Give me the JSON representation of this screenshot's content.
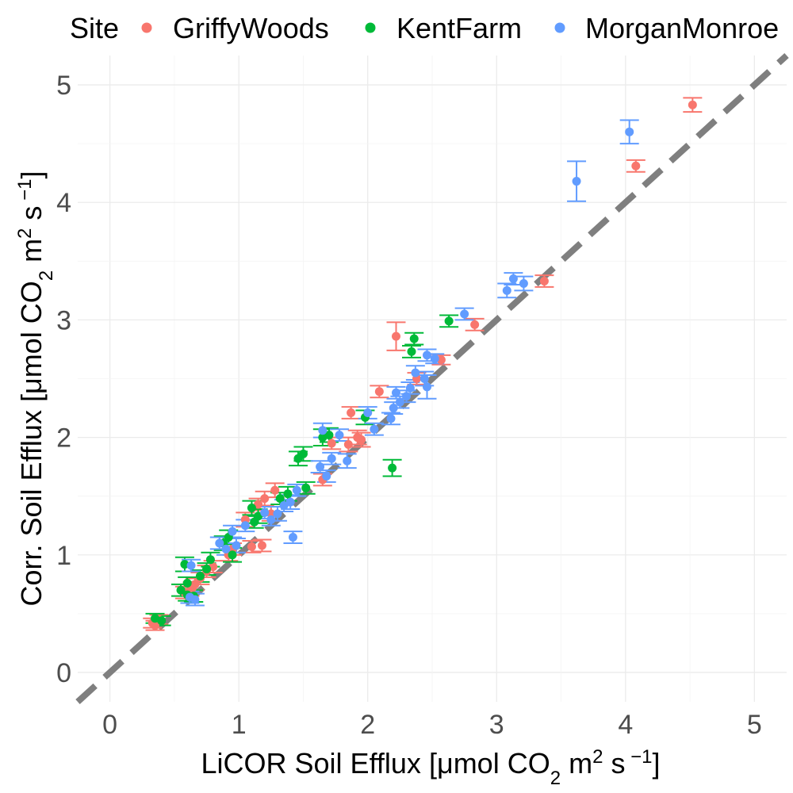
{
  "chart_data": {
    "type": "scatter",
    "legend": {
      "title": "Site",
      "position": "top"
    },
    "xlabel": {
      "main": "LiCOR Soil Efflux  [",
      "unit": "μmol CO",
      "sub": "2",
      "mid": " m",
      "sup1": "2",
      "sp": " s",
      "sup2": " −1",
      "close": "]"
    },
    "ylabel": {
      "main": "Corr. Soil Efflux  [",
      "unit": "μmol CO",
      "sub": "2",
      "mid": " m",
      "sup1": "2",
      "sp": " s",
      "sup2": " −1",
      "close": "]"
    },
    "xlim": [
      -0.25,
      5.25
    ],
    "ylim": [
      -0.25,
      5.25
    ],
    "xticks": [
      "0",
      "1",
      "2",
      "3",
      "4",
      "5"
    ],
    "yticks": [
      "0",
      "1",
      "2",
      "3",
      "4",
      "5"
    ],
    "grid": true,
    "reference_line": {
      "slope": 1,
      "intercept": 0,
      "style": "dashed",
      "color": "#7f7f7f"
    },
    "series": [
      {
        "name": "GriffyWoods",
        "color": "#F8766D",
        "points": [
          [
            4.52,
            4.83,
            0.06
          ],
          [
            4.08,
            4.31,
            0.05
          ],
          [
            3.37,
            3.33,
            0.05
          ],
          [
            2.83,
            2.96,
            0.05
          ],
          [
            2.22,
            2.86,
            0.12
          ],
          [
            2.57,
            2.66,
            0.04
          ],
          [
            2.38,
            2.5,
            0.05
          ],
          [
            2.09,
            2.39,
            0.05
          ],
          [
            1.87,
            2.21,
            0.05
          ],
          [
            1.92,
            2.0,
            0.06
          ],
          [
            1.85,
            1.94,
            0.06
          ],
          [
            1.95,
            1.98,
            0.06
          ],
          [
            1.72,
            1.95,
            0.05
          ],
          [
            1.65,
            1.64,
            0.05
          ],
          [
            1.28,
            1.55,
            0.06
          ],
          [
            1.2,
            1.48,
            0.06
          ],
          [
            1.15,
            1.43,
            0.05
          ],
          [
            1.05,
            1.3,
            0.06
          ],
          [
            1.25,
            1.35,
            0.06
          ],
          [
            1.18,
            1.08,
            0.05
          ],
          [
            1.1,
            1.07,
            0.05
          ],
          [
            0.92,
            1.0,
            0.05
          ],
          [
            0.95,
            1.05,
            0.05
          ],
          [
            0.8,
            0.9,
            0.05
          ],
          [
            0.75,
            0.86,
            0.05
          ],
          [
            0.7,
            0.8,
            0.05
          ],
          [
            0.66,
            0.75,
            0.05
          ],
          [
            0.62,
            0.7,
            0.05
          ],
          [
            0.58,
            0.68,
            0.05
          ],
          [
            0.64,
            0.72,
            0.05
          ],
          [
            0.38,
            0.45,
            0.04
          ],
          [
            0.33,
            0.42,
            0.04
          ],
          [
            0.35,
            0.4,
            0.04
          ]
        ]
      },
      {
        "name": "KentFarm",
        "color": "#00BA38",
        "points": [
          [
            2.63,
            2.99,
            0.05
          ],
          [
            2.36,
            2.84,
            0.05
          ],
          [
            2.34,
            2.73,
            0.05
          ],
          [
            2.19,
            1.74,
            0.07
          ],
          [
            1.98,
            2.17,
            0.06
          ],
          [
            1.65,
            2.0,
            0.07
          ],
          [
            1.7,
            2.02,
            0.06
          ],
          [
            1.5,
            1.86,
            0.06
          ],
          [
            1.46,
            1.82,
            0.06
          ],
          [
            1.52,
            1.57,
            0.05
          ],
          [
            1.38,
            1.52,
            0.06
          ],
          [
            1.32,
            1.48,
            0.05
          ],
          [
            1.1,
            1.4,
            0.06
          ],
          [
            1.15,
            1.33,
            0.06
          ],
          [
            1.12,
            1.28,
            0.05
          ],
          [
            0.92,
            1.15,
            0.06
          ],
          [
            0.88,
            1.1,
            0.06
          ],
          [
            0.95,
            1.0,
            0.06
          ],
          [
            0.78,
            0.96,
            0.06
          ],
          [
            0.75,
            0.88,
            0.05
          ],
          [
            0.7,
            0.82,
            0.05
          ],
          [
            0.58,
            0.92,
            0.06
          ],
          [
            0.6,
            0.76,
            0.05
          ],
          [
            0.55,
            0.7,
            0.05
          ],
          [
            0.6,
            0.66,
            0.05
          ],
          [
            0.65,
            0.65,
            0.05
          ],
          [
            0.35,
            0.46,
            0.04
          ],
          [
            0.4,
            0.44,
            0.04
          ]
        ]
      },
      {
        "name": "MorganMonroe",
        "color": "#619CFF",
        "points": [
          [
            4.03,
            4.6,
            0.1
          ],
          [
            3.62,
            4.18,
            0.17
          ],
          [
            3.13,
            3.35,
            0.05
          ],
          [
            3.21,
            3.31,
            0.06
          ],
          [
            3.08,
            3.25,
            0.06
          ],
          [
            2.75,
            3.05,
            0.05
          ],
          [
            2.46,
            2.7,
            0.05
          ],
          [
            2.52,
            2.67,
            0.04
          ],
          [
            2.37,
            2.55,
            0.06
          ],
          [
            2.44,
            2.5,
            0.06
          ],
          [
            2.33,
            2.42,
            0.05
          ],
          [
            2.46,
            2.43,
            0.1
          ],
          [
            2.3,
            2.35,
            0.05
          ],
          [
            2.25,
            2.3,
            0.05
          ],
          [
            2.22,
            2.38,
            0.05
          ],
          [
            2.2,
            2.25,
            0.05
          ],
          [
            2.18,
            2.16,
            0.05
          ],
          [
            2.05,
            2.07,
            0.05
          ],
          [
            2.0,
            2.21,
            0.05
          ],
          [
            1.78,
            2.02,
            0.05
          ],
          [
            1.65,
            2.06,
            0.06
          ],
          [
            1.72,
            1.82,
            0.05
          ],
          [
            1.84,
            1.8,
            0.06
          ],
          [
            1.68,
            1.67,
            0.05
          ],
          [
            1.63,
            1.75,
            0.05
          ],
          [
            1.45,
            1.55,
            0.05
          ],
          [
            1.4,
            1.45,
            0.06
          ],
          [
            1.35,
            1.42,
            0.05
          ],
          [
            1.3,
            1.35,
            0.06
          ],
          [
            1.25,
            1.3,
            0.05
          ],
          [
            1.2,
            1.36,
            0.05
          ],
          [
            1.42,
            1.15,
            0.05
          ],
          [
            1.05,
            1.25,
            0.05
          ],
          [
            0.95,
            1.2,
            0.05
          ],
          [
            0.98,
            1.08,
            0.06
          ],
          [
            0.9,
            1.05,
            0.05
          ],
          [
            0.85,
            1.1,
            0.05
          ],
          [
            0.63,
            0.91,
            0.05
          ],
          [
            0.62,
            0.64,
            0.05
          ],
          [
            0.66,
            0.62,
            0.05
          ]
        ]
      }
    ]
  }
}
